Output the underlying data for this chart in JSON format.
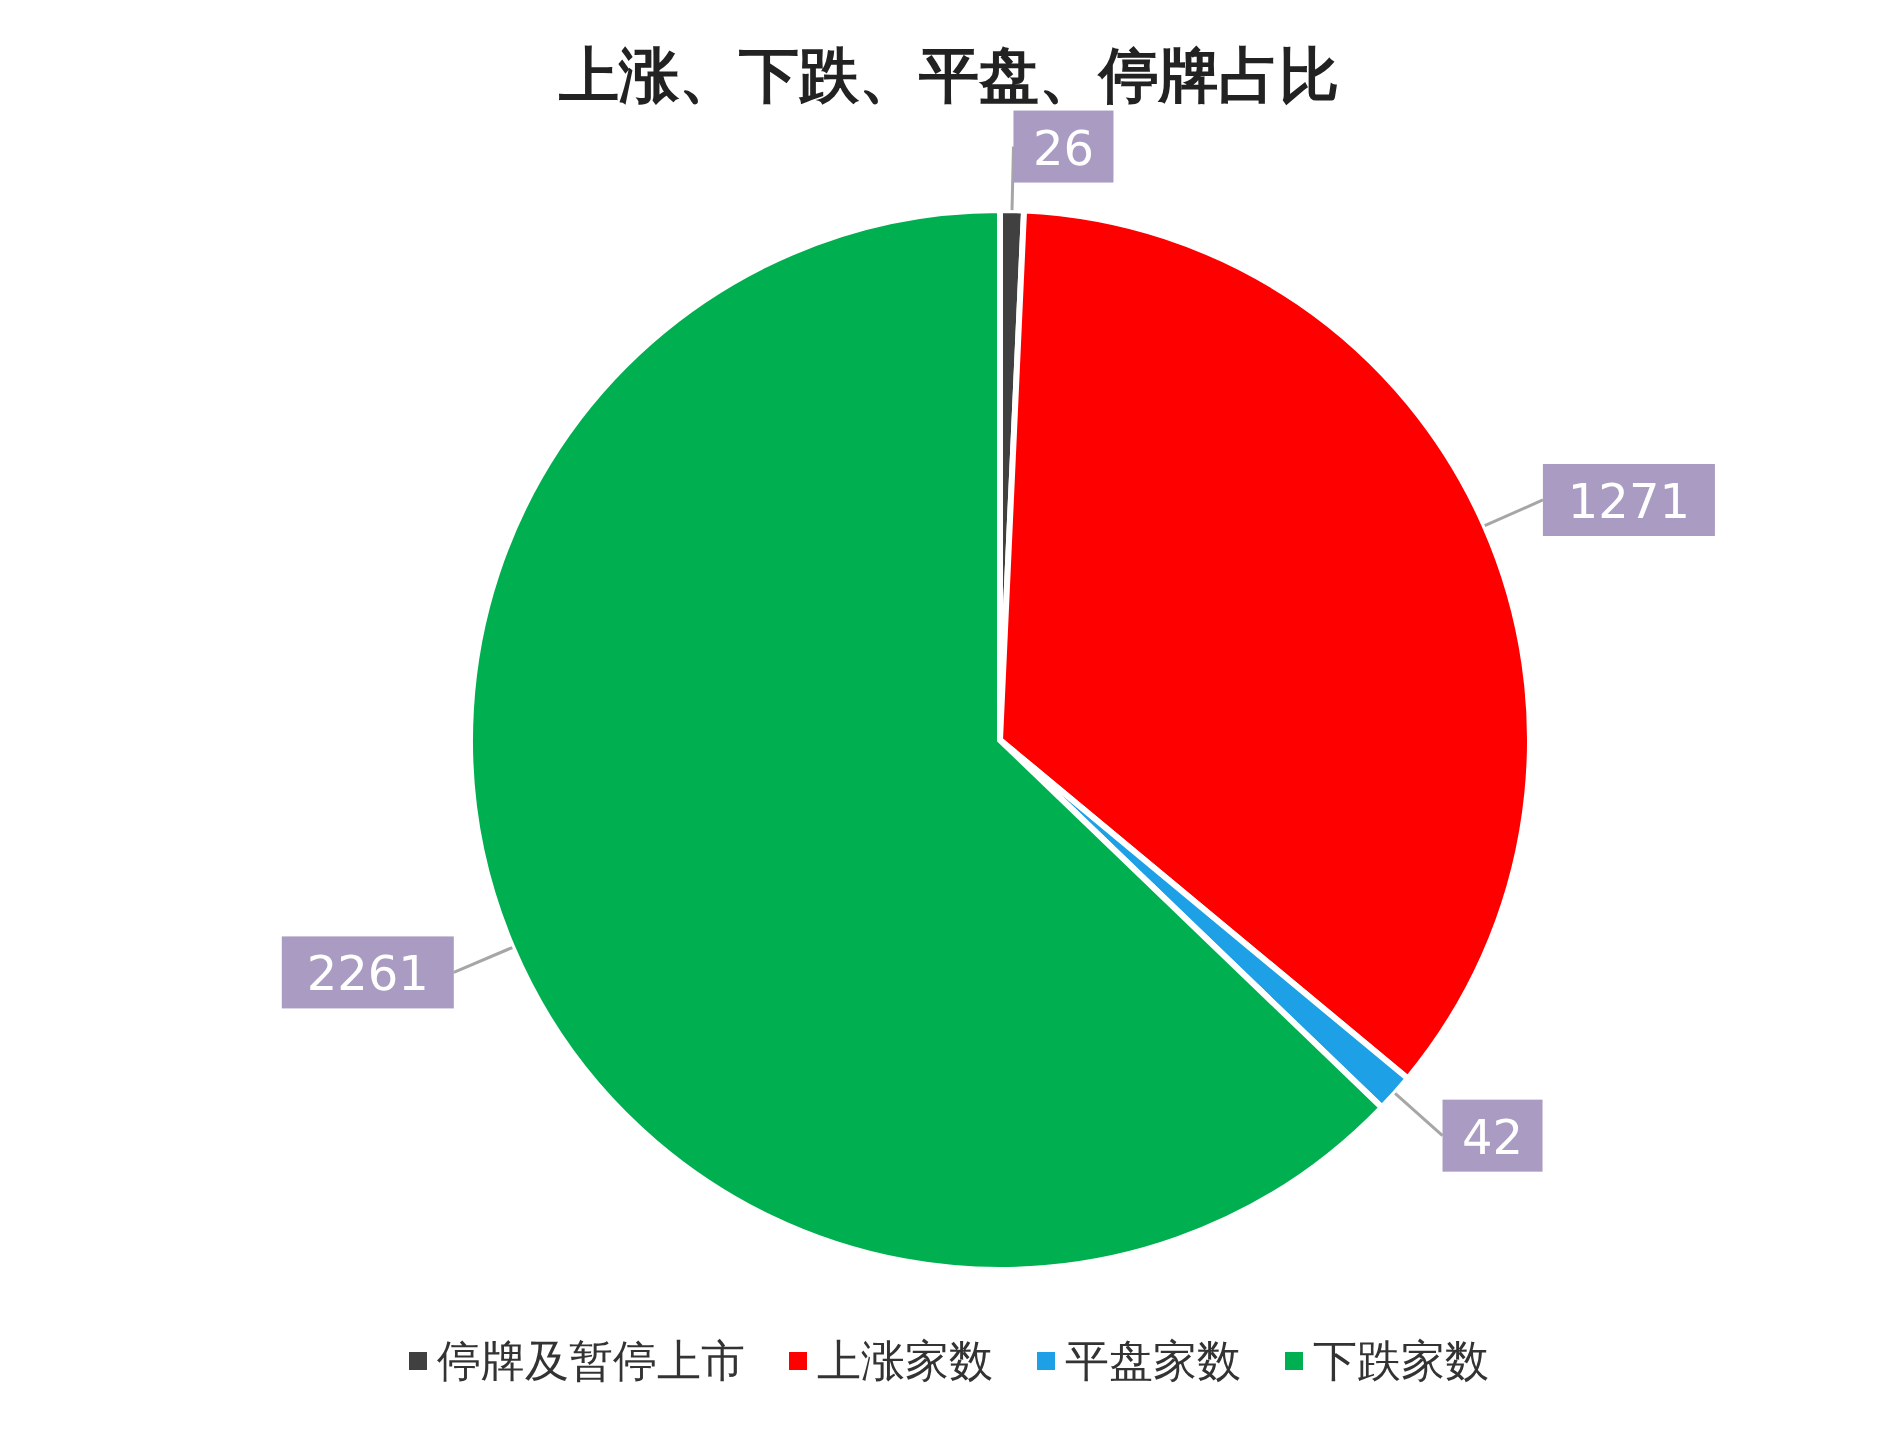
{
  "chart_data": {
    "type": "pie",
    "title": "上涨、下跌、平盘、停牌占比",
    "categories": [
      "停牌及暂停上市",
      "上涨家数",
      "平盘家数",
      "下跌家数"
    ],
    "values": [
      26,
      1271,
      42,
      2261
    ],
    "colors": [
      "#404040",
      "#ff0000",
      "#1ea0e6",
      "#00b050"
    ],
    "data_labels": true,
    "legend": "bottom"
  }
}
